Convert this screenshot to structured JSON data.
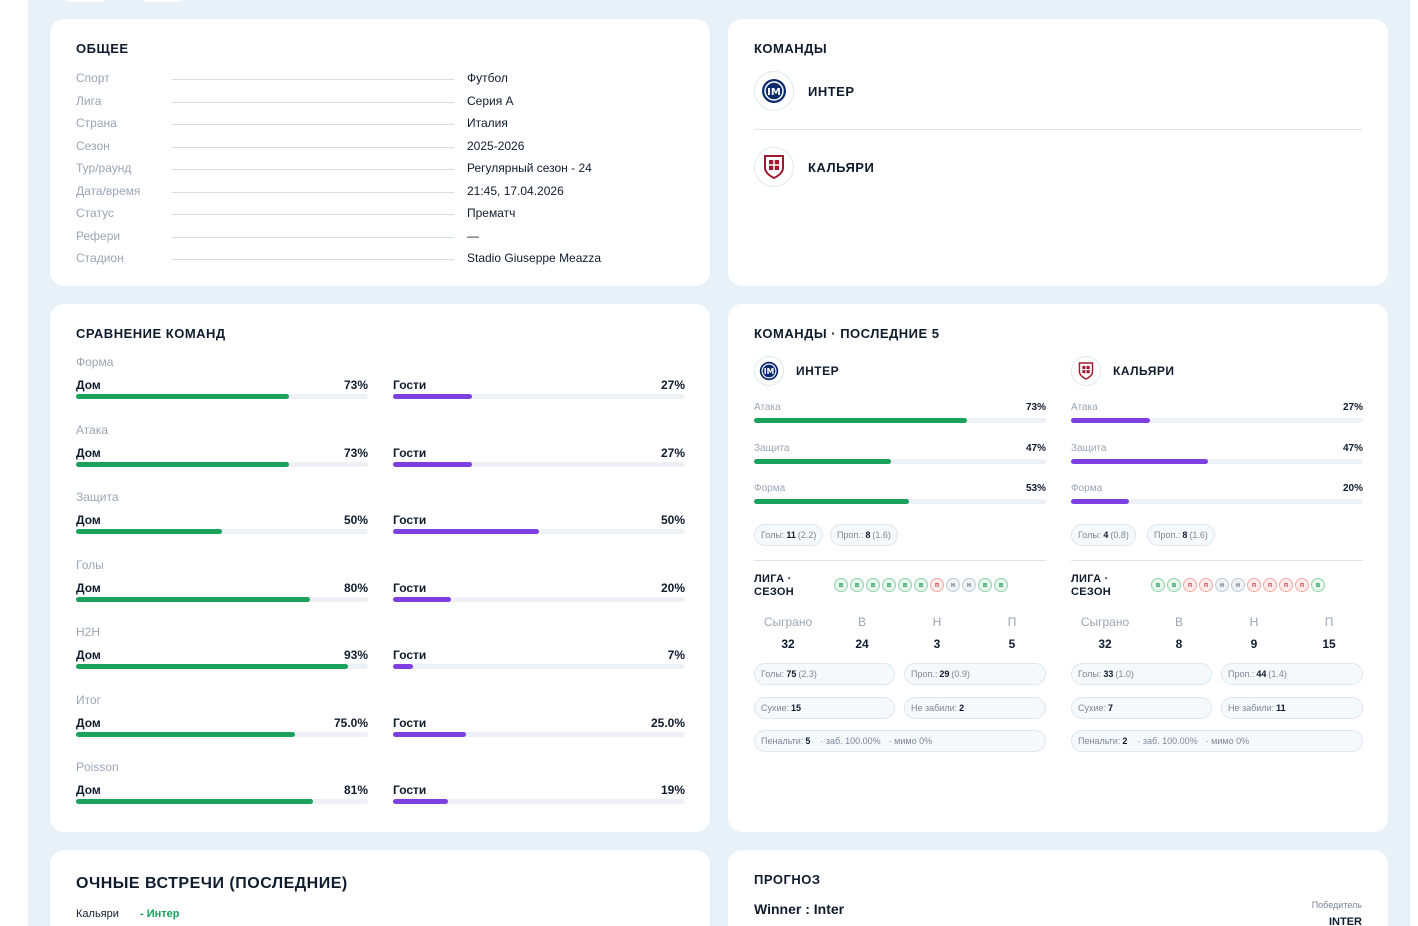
{
  "general": {
    "title": "ОБЩЕЕ",
    "rows": [
      {
        "label": "Спорт",
        "value": "Футбол"
      },
      {
        "label": "Лига",
        "value": "Серия А"
      },
      {
        "label": "Страна",
        "value": "Италия"
      },
      {
        "label": "Сезон",
        "value": "2025-2026"
      },
      {
        "label": "Тур/раунд",
        "value": "Регулярный сезон - 24"
      },
      {
        "label": "Дата/время",
        "value": "21:45, 17.04.2026"
      },
      {
        "label": "Статус",
        "value": "Прематч"
      },
      {
        "label": "Рефери",
        "value": "—"
      },
      {
        "label": "Стадион",
        "value": "Stadio Giuseppe Meazza"
      }
    ]
  },
  "teams": {
    "title": "КОМАНДЫ",
    "home": {
      "name": "ИНТЕР",
      "logo_icon": "inter-logo-icon"
    },
    "away": {
      "name": "КАЛЬЯРИ",
      "logo_icon": "cagliari-logo-icon"
    }
  },
  "comparison": {
    "title": "СРАВНЕНИЕ КОМАНД",
    "home_label": "Дом",
    "away_label": "Гости",
    "rows": [
      {
        "category": "Форма",
        "home": "73%",
        "away": "27%",
        "home_fill": 0.73,
        "away_fill": 0.27
      },
      {
        "category": "Атака",
        "home": "73%",
        "away": "27%",
        "home_fill": 0.73,
        "away_fill": 0.27
      },
      {
        "category": "Защита",
        "home": "50%",
        "away": "50%",
        "home_fill": 0.5,
        "away_fill": 0.5
      },
      {
        "category": "Голы",
        "home": "80%",
        "away": "20%",
        "home_fill": 0.8,
        "away_fill": 0.2
      },
      {
        "category": "H2H",
        "home": "93%",
        "away": "7%",
        "home_fill": 0.93,
        "away_fill": 0.07
      },
      {
        "category": "Итог",
        "home": "75.0%",
        "away": "25.0%",
        "home_fill": 0.75,
        "away_fill": 0.25
      },
      {
        "category": "Poisson",
        "home": "81%",
        "away": "19%",
        "home_fill": 0.81,
        "away_fill": 0.19
      }
    ]
  },
  "last5": {
    "title": "КОМАНДЫ · ПОСЛЕДНИЕ 5",
    "league_label_line1": "ЛИГА ·",
    "league_label_line2": "СЕЗОН",
    "stat_headers": [
      "Сыграно",
      "В",
      "Н",
      "П"
    ],
    "teams": [
      {
        "name": "ИНТЕР",
        "metrics": [
          {
            "label": "Атака",
            "value": "73%",
            "fill": 0.73
          },
          {
            "label": "Защита",
            "value": "47%",
            "fill": 0.47
          },
          {
            "label": "Форма",
            "value": "53%",
            "fill": 0.53
          }
        ],
        "goals_label": "Голы:",
        "goals": "11",
        "goals_avg": "(2.2)",
        "conceded_label": "Проп.:",
        "conceded": "8",
        "conceded_avg": "(1.6)",
        "form": [
          "в",
          "в",
          "в",
          "в",
          "в",
          "в",
          "п",
          "н",
          "н",
          "в",
          "в"
        ],
        "stats": [
          "32",
          "24",
          "3",
          "5"
        ],
        "season_goals": "75",
        "season_goals_avg": "(2.3)",
        "season_conceded": "29",
        "season_conceded_avg": "(0.9)",
        "clean_label": "Сухие:",
        "clean": "15",
        "no_score_label": "Не забили:",
        "no_score": "2",
        "pen_label": "Пенальти:",
        "pen": "5",
        "pen_scored": "· заб. 100.00%",
        "pen_missed": "· мимо 0%"
      },
      {
        "name": "КАЛЬЯРИ",
        "metrics": [
          {
            "label": "Атака",
            "value": "27%",
            "fill": 0.27
          },
          {
            "label": "Защита",
            "value": "47%",
            "fill": 0.47
          },
          {
            "label": "Форма",
            "value": "20%",
            "fill": 0.2
          }
        ],
        "goals_label": "Голы:",
        "goals": "4",
        "goals_avg": "(0.8)",
        "conceded_label": "Проп.:",
        "conceded": "8",
        "conceded_avg": "(1.6)",
        "form": [
          "в",
          "в",
          "п",
          "п",
          "н",
          "н",
          "п",
          "п",
          "п",
          "п",
          "в"
        ],
        "stats": [
          "32",
          "8",
          "9",
          "15"
        ],
        "season_goals": "33",
        "season_goals_avg": "(1.0)",
        "season_conceded": "44",
        "season_conceded_avg": "(1.4)",
        "clean_label": "Сухие:",
        "clean": "7",
        "no_score_label": "Не забили:",
        "no_score": "11",
        "pen_label": "Пенальти:",
        "pen": "2",
        "pen_scored": "· заб. 100.00%",
        "pen_missed": "· мимо 0%"
      }
    ]
  },
  "h2h": {
    "title": "ОЧНЫЕ ВСТРЕЧИ (ПОСЛЕДНИЕ)",
    "first_row_home": "Кальяри",
    "first_row_sep": "-",
    "first_row_away": "Интер"
  },
  "forecast": {
    "title": "ПРОГНОЗ",
    "winner_text": "Winner : Inter",
    "winner_caption": "Победитель",
    "winner_value": "INTER"
  },
  "colors": {
    "home": "#1aa15c",
    "away": "#7d3fe0",
    "background": "#e8f1f8"
  }
}
